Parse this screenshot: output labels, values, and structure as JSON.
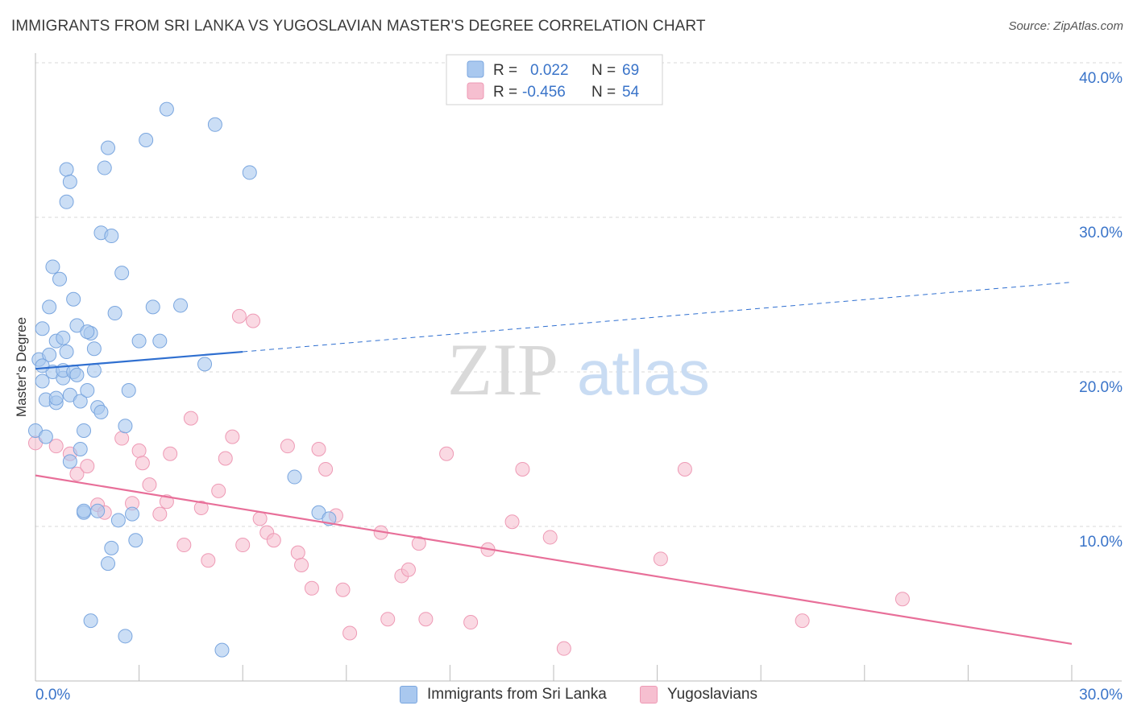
{
  "title": "IMMIGRANTS FROM SRI LANKA VS YUGOSLAVIAN MASTER'S DEGREE CORRELATION CHART",
  "source": "Source: ZipAtlas.com",
  "watermark": {
    "zip": "ZIP",
    "atlas": "atlas"
  },
  "colors": {
    "blue_fill": "#a9c8ef",
    "blue_stroke": "#7aa6df",
    "blue_line": "#2f6fd0",
    "pink_fill": "#f6bfd0",
    "pink_stroke": "#ee9ab5",
    "pink_line": "#e86f99",
    "axis_text": "#3a74c9",
    "grid": "#d8d8d8"
  },
  "legend": {
    "r_label": "R =",
    "n_label": "N =",
    "series1": {
      "r": "0.022",
      "n": "69"
    },
    "series2": {
      "r": "-0.456",
      "n": "54"
    }
  },
  "chart_data": {
    "type": "scatter",
    "title": "IMMIGRANTS FROM SRI LANKA VS YUGOSLAVIAN MASTER'S DEGREE CORRELATION CHART",
    "xlabel": "",
    "ylabel": "Master's Degree",
    "xlim": [
      0,
      30
    ],
    "ylim": [
      0,
      40
    ],
    "x_tick_labels": [
      "0.0%",
      "30.0%"
    ],
    "y_ticks": [
      10,
      20,
      30,
      40
    ],
    "y_tick_labels": [
      "10.0%",
      "20.0%",
      "30.0%",
      "40.0%"
    ],
    "grid": true,
    "legend_position": "top-center",
    "series": [
      {
        "name": "Immigrants from Sri Lanka",
        "color": "#a9c8ef",
        "trend": {
          "x0": 0,
          "y0": 20.2,
          "x1": 6.0,
          "y1": 21.3,
          "x_dash_end": 30,
          "y_dash_end": 25.8
        },
        "points": [
          [
            0.0,
            16.2
          ],
          [
            0.1,
            20.8
          ],
          [
            0.2,
            19.4
          ],
          [
            0.2,
            22.8
          ],
          [
            0.3,
            18.2
          ],
          [
            0.4,
            21.1
          ],
          [
            0.4,
            24.2
          ],
          [
            0.5,
            26.8
          ],
          [
            0.5,
            20.0
          ],
          [
            0.6,
            22.0
          ],
          [
            0.6,
            18.0
          ],
          [
            0.7,
            26.0
          ],
          [
            0.8,
            22.2
          ],
          [
            0.8,
            19.6
          ],
          [
            0.8,
            20.1
          ],
          [
            0.9,
            31.0
          ],
          [
            0.9,
            33.1
          ],
          [
            1.0,
            18.5
          ],
          [
            1.0,
            32.3
          ],
          [
            1.1,
            24.7
          ],
          [
            1.1,
            20.0
          ],
          [
            1.2,
            23.0
          ],
          [
            1.3,
            18.1
          ],
          [
            1.3,
            15.0
          ],
          [
            1.4,
            10.9
          ],
          [
            1.4,
            16.2
          ],
          [
            1.5,
            18.8
          ],
          [
            1.6,
            22.5
          ],
          [
            1.7,
            21.5
          ],
          [
            1.8,
            17.7
          ],
          [
            1.8,
            11.0
          ],
          [
            1.9,
            17.4
          ],
          [
            1.9,
            29.0
          ],
          [
            2.0,
            33.2
          ],
          [
            2.1,
            34.5
          ],
          [
            2.1,
            7.6
          ],
          [
            2.2,
            28.8
          ],
          [
            2.2,
            8.6
          ],
          [
            2.3,
            23.8
          ],
          [
            2.4,
            10.4
          ],
          [
            2.5,
            26.4
          ],
          [
            2.6,
            16.5
          ],
          [
            2.7,
            18.8
          ],
          [
            2.9,
            9.1
          ],
          [
            3.0,
            22.0
          ],
          [
            3.2,
            35.0
          ],
          [
            3.6,
            22.0
          ],
          [
            3.8,
            37.0
          ],
          [
            4.2,
            24.3
          ],
          [
            4.9,
            20.5
          ],
          [
            5.2,
            36.0
          ],
          [
            5.4,
            2.0
          ],
          [
            6.2,
            32.9
          ],
          [
            7.5,
            13.2
          ],
          [
            8.2,
            10.9
          ],
          [
            8.5,
            10.5
          ],
          [
            1.4,
            11.0
          ],
          [
            1.6,
            3.9
          ],
          [
            2.6,
            2.9
          ],
          [
            1.0,
            14.2
          ],
          [
            0.3,
            15.8
          ],
          [
            0.6,
            18.3
          ],
          [
            1.7,
            20.1
          ],
          [
            1.2,
            19.8
          ],
          [
            0.9,
            21.3
          ],
          [
            2.8,
            10.8
          ],
          [
            3.4,
            24.2
          ],
          [
            0.2,
            20.4
          ],
          [
            1.5,
            22.6
          ]
        ]
      },
      {
        "name": "Yugoslavians",
        "color": "#f6bfd0",
        "trend": {
          "x0": 0,
          "y0": 13.3,
          "x1": 30,
          "y1": 2.4
        },
        "points": [
          [
            0.0,
            15.4
          ],
          [
            0.6,
            15.2
          ],
          [
            1.0,
            14.7
          ],
          [
            1.2,
            13.4
          ],
          [
            1.5,
            13.9
          ],
          [
            1.8,
            11.4
          ],
          [
            2.0,
            10.9
          ],
          [
            2.5,
            15.7
          ],
          [
            2.8,
            11.5
          ],
          [
            3.0,
            14.9
          ],
          [
            3.1,
            14.1
          ],
          [
            3.3,
            12.7
          ],
          [
            3.6,
            10.8
          ],
          [
            3.8,
            11.6
          ],
          [
            3.9,
            14.7
          ],
          [
            4.3,
            8.8
          ],
          [
            4.5,
            17.0
          ],
          [
            4.8,
            11.2
          ],
          [
            5.0,
            7.8
          ],
          [
            5.3,
            12.3
          ],
          [
            5.5,
            14.4
          ],
          [
            5.7,
            15.8
          ],
          [
            5.9,
            23.6
          ],
          [
            6.0,
            8.8
          ],
          [
            6.3,
            23.3
          ],
          [
            6.5,
            10.5
          ],
          [
            6.7,
            9.6
          ],
          [
            6.9,
            9.1
          ],
          [
            7.3,
            15.2
          ],
          [
            7.6,
            8.3
          ],
          [
            7.7,
            7.5
          ],
          [
            8.0,
            6.0
          ],
          [
            8.2,
            15.0
          ],
          [
            8.4,
            13.7
          ],
          [
            8.7,
            10.7
          ],
          [
            8.9,
            5.9
          ],
          [
            9.1,
            3.1
          ],
          [
            10.0,
            9.6
          ],
          [
            10.2,
            4.0
          ],
          [
            10.6,
            6.8
          ],
          [
            10.8,
            7.2
          ],
          [
            11.1,
            8.9
          ],
          [
            11.3,
            4.0
          ],
          [
            11.9,
            14.7
          ],
          [
            12.6,
            3.8
          ],
          [
            13.1,
            8.5
          ],
          [
            13.8,
            10.3
          ],
          [
            14.1,
            13.7
          ],
          [
            14.9,
            9.3
          ],
          [
            15.3,
            2.1
          ],
          [
            18.1,
            7.9
          ],
          [
            18.8,
            13.7
          ],
          [
            22.2,
            3.9
          ],
          [
            25.1,
            5.3
          ]
        ]
      }
    ]
  },
  "bottom_legend": {
    "series1_label": "Immigrants from Sri Lanka",
    "series2_label": "Yugoslavians"
  }
}
